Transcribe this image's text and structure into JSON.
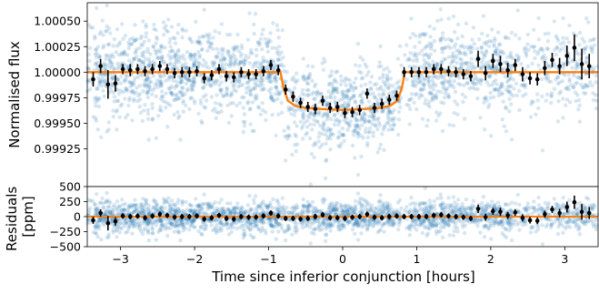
{
  "chart_data": [
    {
      "type": "scatter",
      "panel": "top",
      "title": "",
      "xlabel": "",
      "ylabel": "Normalised flux",
      "xlim": [
        -3.45,
        3.45
      ],
      "ylim": [
        0.99888,
        1.00068
      ],
      "xticks": [
        -3,
        -2,
        -1,
        0,
        1,
        2,
        3
      ],
      "yticks": [
        0.99925,
        0.9995,
        0.99975,
        1.0,
        1.00025,
        1.0005
      ],
      "ytick_labels": [
        "0.99925",
        "0.99950",
        "0.99975",
        "1.00000",
        "1.00025",
        "1.00050"
      ],
      "grid": false,
      "model": {
        "color": "#ff7f0e",
        "x": [
          -3.45,
          -0.84,
          -0.8,
          -0.74,
          -0.64,
          -0.5,
          -0.3,
          0.0,
          0.3,
          0.5,
          0.64,
          0.74,
          0.8,
          0.84,
          3.45
        ],
        "y": [
          1.0,
          1.0,
          0.99985,
          0.99972,
          0.99967,
          0.99965,
          0.99964,
          0.99963,
          0.99964,
          0.99965,
          0.99967,
          0.99972,
          0.99985,
          1.0,
          1.0
        ]
      },
      "raw_color": "#1f77b4",
      "binned": {
        "x": [
          -3.37,
          -3.27,
          -3.17,
          -3.07,
          -2.97,
          -2.87,
          -2.77,
          -2.67,
          -2.57,
          -2.47,
          -2.37,
          -2.27,
          -2.17,
          -2.07,
          -1.97,
          -1.87,
          -1.77,
          -1.67,
          -1.57,
          -1.47,
          -1.37,
          -1.27,
          -1.17,
          -1.07,
          -0.97,
          -0.87,
          -0.77,
          -0.67,
          -0.57,
          -0.47,
          -0.37,
          -0.27,
          -0.17,
          -0.07,
          0.03,
          0.13,
          0.23,
          0.33,
          0.43,
          0.53,
          0.63,
          0.73,
          0.83,
          0.93,
          1.03,
          1.13,
          1.23,
          1.33,
          1.43,
          1.53,
          1.63,
          1.73,
          1.83,
          1.93,
          2.03,
          2.13,
          2.23,
          2.33,
          2.43,
          2.53,
          2.63,
          2.73,
          2.83,
          2.93,
          3.03,
          3.13,
          3.23,
          3.33
        ],
        "y": [
          0.99993,
          1.00006,
          0.99988,
          0.99989,
          1.00003,
          1.00002,
          1.00003,
          1.00001,
          1.00003,
          1.00006,
          1.00003,
          0.99999,
          1.0,
          1.0,
          1.00001,
          0.99994,
          0.99997,
          1.00003,
          0.99996,
          0.99995,
          1.0,
          0.99998,
          0.99998,
          1.00001,
          1.00007,
          1.00002,
          0.99983,
          0.99976,
          0.9997,
          0.99966,
          0.99964,
          0.99972,
          0.99965,
          0.99966,
          0.9996,
          0.99961,
          0.99963,
          0.99979,
          0.99965,
          0.99969,
          0.99973,
          0.99977,
          1.0,
          1.0,
          1.0,
          1.0,
          1.00003,
          1.00003,
          1.00001,
          1.0,
          0.99998,
          0.99996,
          1.00013,
          0.99999,
          1.00011,
          1.00008,
          1.00002,
          1.00007,
          0.99998,
          0.99994,
          0.99993,
          1.00004,
          1.00012,
          1.00006,
          1.00016,
          1.00024,
          1.00008,
          1.00006
        ],
        "yerr": [
          7e-05,
          7e-05,
          0.00014,
          8e-05,
          5e-05,
          6e-05,
          5e-05,
          5e-05,
          5e-05,
          5e-05,
          5e-05,
          5e-05,
          5e-05,
          5e-05,
          5e-05,
          5e-05,
          5e-05,
          5e-05,
          5e-05,
          5e-05,
          5e-05,
          5e-05,
          5e-05,
          5e-05,
          5e-05,
          5e-05,
          5e-05,
          5e-05,
          5e-05,
          5e-05,
          5e-05,
          5e-05,
          5e-05,
          5e-05,
          5e-05,
          5e-05,
          5e-05,
          5e-05,
          5e-05,
          5e-05,
          5e-05,
          5e-05,
          5e-05,
          5e-05,
          5e-05,
          5e-05,
          5e-05,
          5e-05,
          5e-05,
          5e-05,
          5e-05,
          5e-05,
          8e-05,
          7e-05,
          7e-05,
          8e-05,
          7e-05,
          6e-05,
          7e-05,
          6e-05,
          6e-05,
          7e-05,
          7e-05,
          8e-05,
          0.0001,
          0.00013,
          0.00015,
          0.00012
        ]
      }
    },
    {
      "type": "scatter",
      "panel": "bottom",
      "title": "",
      "xlabel": "Time since inferior conjunction [hours]",
      "ylabel": "Residuals\n[ppm]",
      "xlim": [
        -3.45,
        3.45
      ],
      "ylim": [
        -500,
        500
      ],
      "xticks": [
        -3,
        -2,
        -1,
        0,
        1,
        2,
        3
      ],
      "xtick_labels": [
        "−3",
        "−2",
        "−1",
        "0",
        "1",
        "2",
        "3"
      ],
      "yticks": [
        500,
        250,
        0,
        -250,
        -500
      ],
      "ytick_labels": [
        "500",
        "250",
        "0",
        "−250",
        "−500"
      ],
      "grid": false,
      "zero_line_color": "#ff7f0e",
      "raw_color": "#1f77b4",
      "binned": {
        "x": [
          -3.37,
          -3.27,
          -3.17,
          -3.07,
          -2.97,
          -2.87,
          -2.77,
          -2.67,
          -2.57,
          -2.47,
          -2.37,
          -2.27,
          -2.17,
          -2.07,
          -1.97,
          -1.87,
          -1.77,
          -1.67,
          -1.57,
          -1.47,
          -1.37,
          -1.27,
          -1.17,
          -1.07,
          -0.97,
          -0.87,
          -0.77,
          -0.67,
          -0.57,
          -0.47,
          -0.37,
          -0.27,
          -0.17,
          -0.07,
          0.03,
          0.13,
          0.23,
          0.33,
          0.43,
          0.53,
          0.63,
          0.73,
          0.83,
          0.93,
          1.03,
          1.13,
          1.23,
          1.33,
          1.43,
          1.53,
          1.63,
          1.73,
          1.83,
          1.93,
          2.03,
          2.13,
          2.23,
          2.33,
          2.43,
          2.53,
          2.63,
          2.73,
          2.83,
          2.93,
          3.03,
          3.13,
          3.23,
          3.33
        ],
        "y": [
          -60,
          60,
          -110,
          -80,
          10,
          0,
          10,
          -20,
          10,
          40,
          20,
          -10,
          0,
          0,
          10,
          -40,
          -20,
          20,
          -30,
          -40,
          0,
          -10,
          -10,
          10,
          60,
          10,
          -30,
          -30,
          -40,
          -30,
          0,
          30,
          -20,
          -20,
          -30,
          -10,
          0,
          40,
          -10,
          -20,
          0,
          10,
          0,
          0,
          0,
          0,
          20,
          30,
          10,
          0,
          -10,
          -30,
          130,
          -10,
          90,
          80,
          20,
          70,
          -20,
          -60,
          -70,
          40,
          120,
          60,
          160,
          240,
          80,
          60
        ],
        "yerr": [
          60,
          60,
          120,
          70,
          45,
          45,
          45,
          45,
          45,
          45,
          45,
          45,
          45,
          45,
          45,
          45,
          45,
          45,
          45,
          45,
          45,
          45,
          45,
          45,
          45,
          45,
          45,
          45,
          45,
          45,
          45,
          45,
          45,
          45,
          45,
          45,
          45,
          45,
          45,
          45,
          45,
          45,
          45,
          45,
          45,
          45,
          45,
          45,
          45,
          45,
          45,
          45,
          70,
          60,
          60,
          70,
          60,
          55,
          60,
          55,
          55,
          60,
          60,
          70,
          90,
          110,
          130,
          100
        ]
      }
    }
  ]
}
